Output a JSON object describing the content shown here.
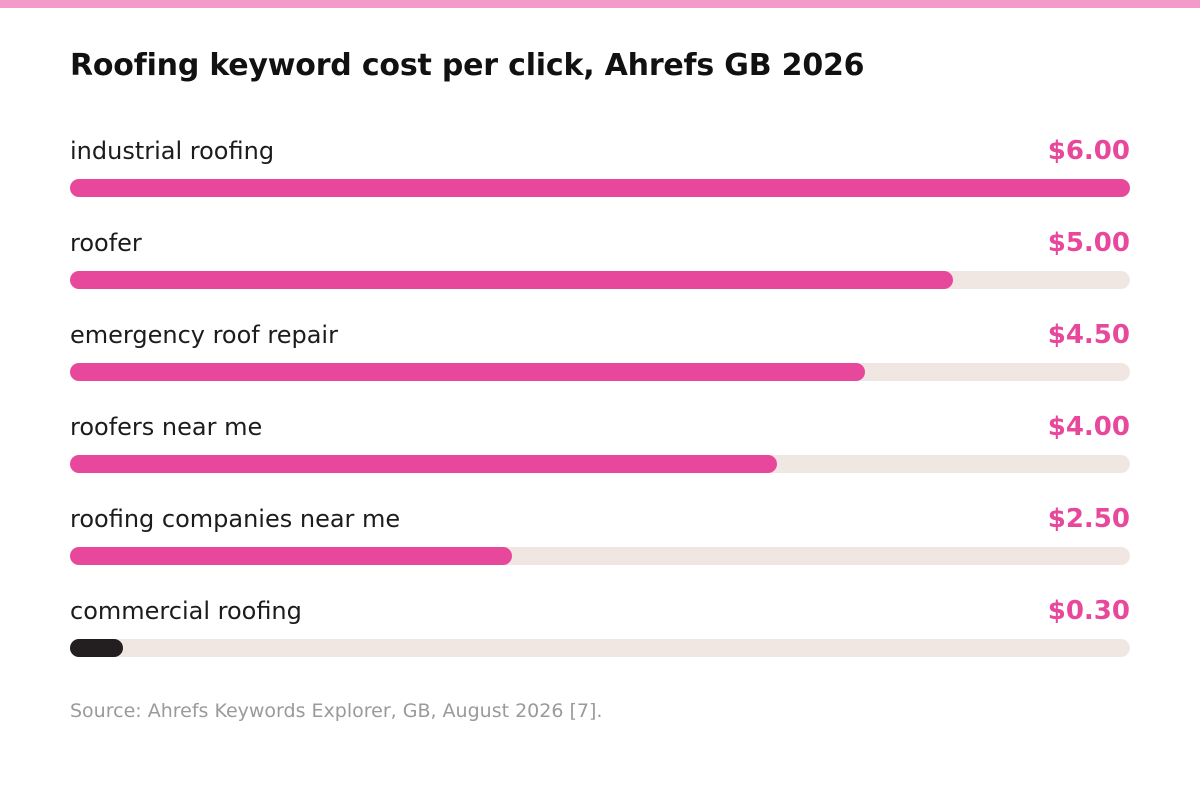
{
  "chart_data": {
    "type": "bar",
    "orientation": "horizontal",
    "title": "Roofing keyword cost per click, Ahrefs GB 2026",
    "categories": [
      "industrial roofing",
      "roofer",
      "emergency roof repair",
      "roofers near me",
      "roofing companies near me",
      "commercial roofing"
    ],
    "values": [
      6.0,
      5.0,
      4.5,
      4.0,
      2.5,
      0.3
    ],
    "value_labels": [
      "$6.00",
      "$5.00",
      "$4.50",
      "$4.00",
      "$2.50",
      "$0.30"
    ],
    "xlim": [
      0,
      6
    ],
    "grid": false,
    "legend": "none",
    "highlight_colors": [
      "#E8489B",
      "#E8489B",
      "#E8489B",
      "#E8489B",
      "#E8489B",
      "#231F20"
    ]
  },
  "source": "Source: Ahrefs Keywords Explorer, GB, August 2026 [7].",
  "colors": {
    "accent": "#E8489B",
    "stripe": "#F49AC9",
    "track": "#F1E7E2",
    "dark_bar": "#231F20"
  }
}
